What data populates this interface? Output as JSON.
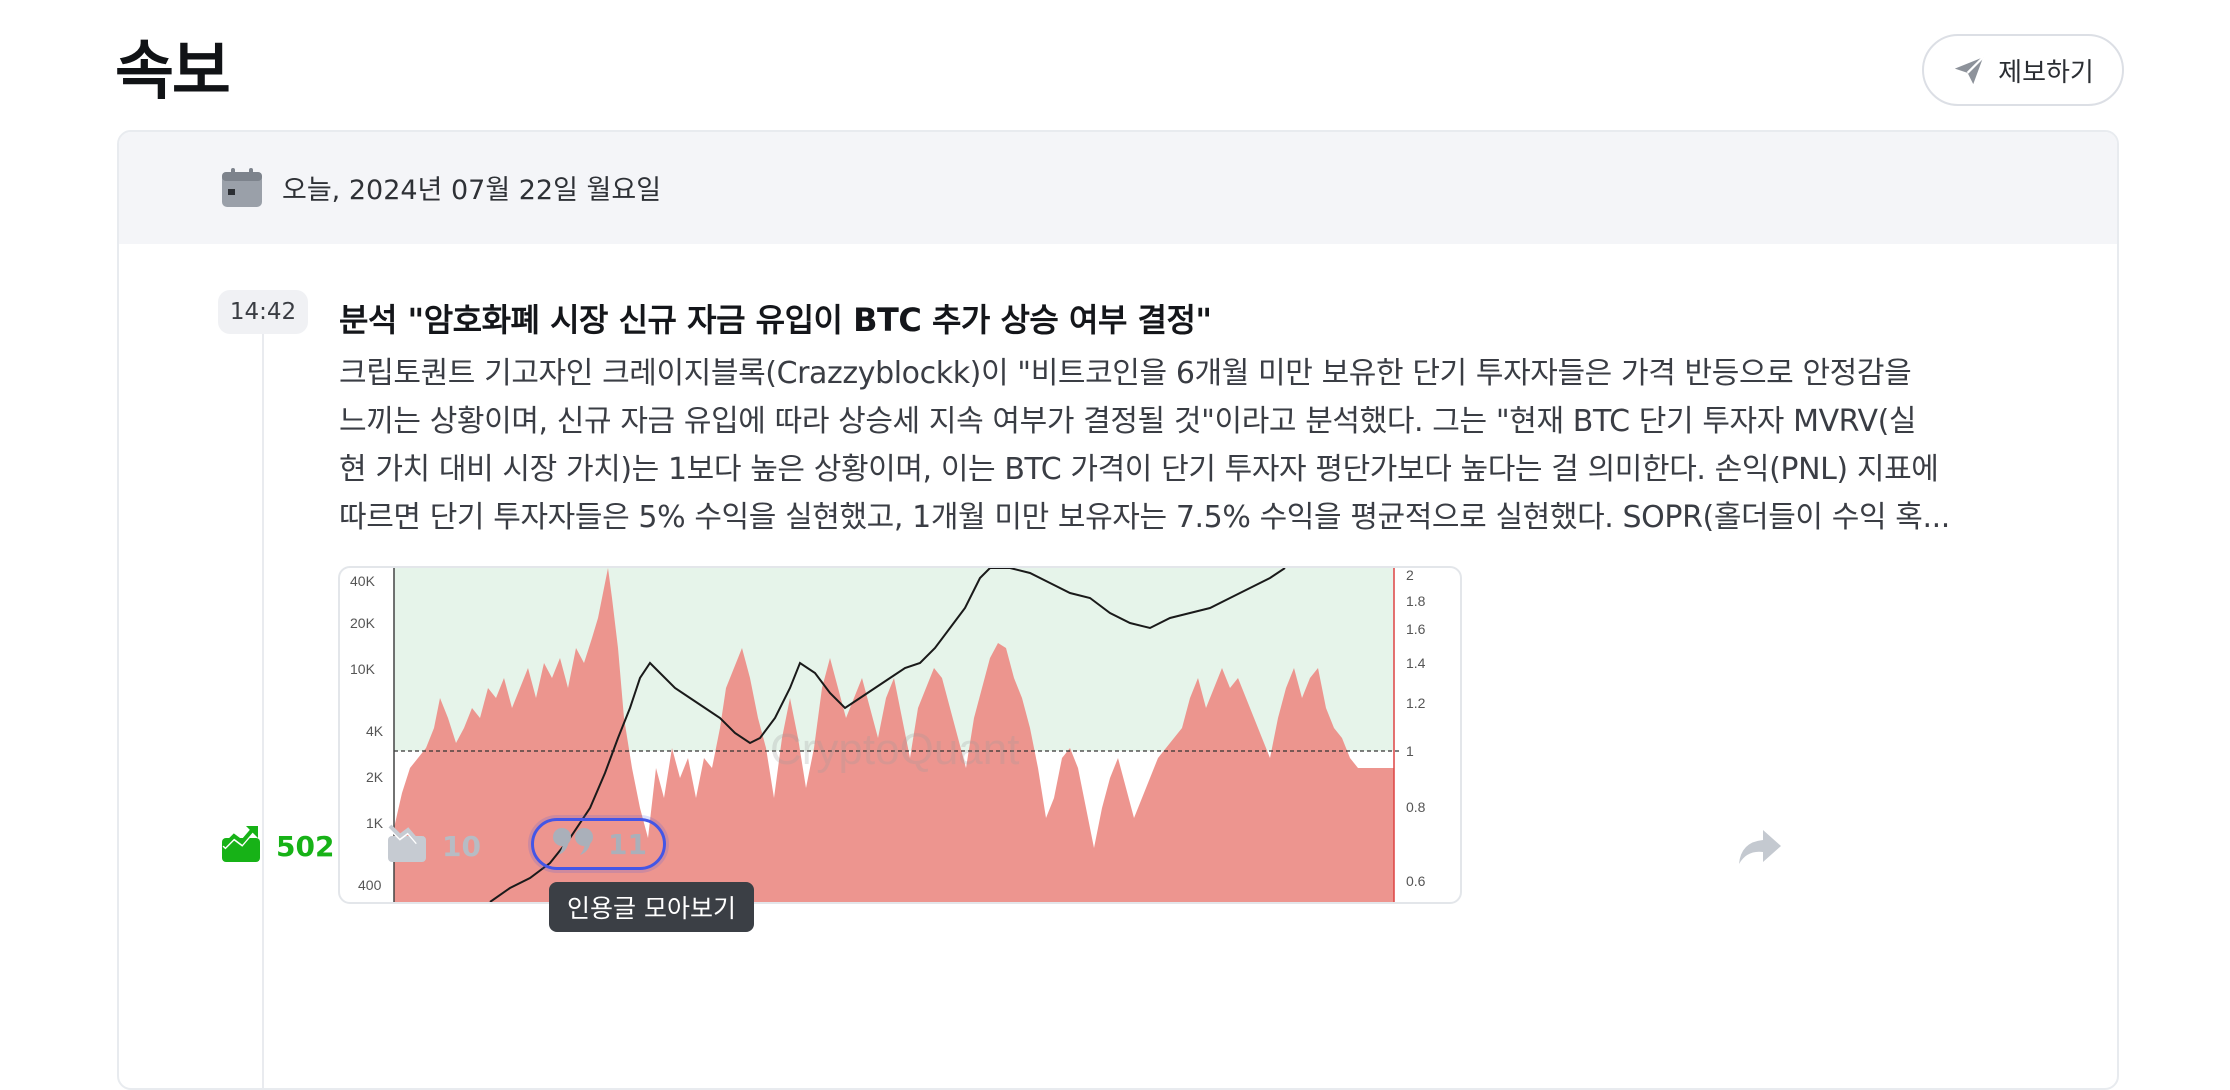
{
  "page": {
    "title": "속보"
  },
  "report_button": {
    "label": "제보하기"
  },
  "date_bar": {
    "text": "오늘, 2024년 07월 22일 월요일"
  },
  "news": {
    "time": "14:42",
    "title": "분석 \"암호화폐 시장 신규 자금 유입이 BTC 추가 상승 여부 결정\"",
    "body_lines": [
      "크립토퀀트 기고자인 크레이지블록(Crazzyblockk)이 \"비트코인을 6개월 미만 보유한 단기 투자자들은 가격 반등으로 안정감을",
      "느끼는 상황이며, 신규 자금 유입에 따라 상승세 지속 여부가 결정될 것\"이라고 분석했다. 그는 \"현재 BTC 단기 투자자 MVRV(실",
      "현 가치 대비 시장 가치)는 1보다 높은 상황이며, 이는 BTC 가격이 단기 투자자 평단가보다 높다는 걸 의미한다. 손익(PNL) 지표에",
      "따르면 단기 투자자들은 5% 수익을 실현했고, 1개월 미만 보유자는 7.5% 수익을 평균적으로 실현했다. SOPR(홀더들이 수익 혹..."
    ]
  },
  "chart_image": {
    "left_axis_ticks": [
      "40K",
      "20K",
      "10K",
      "4K",
      "2K",
      "1K",
      "400"
    ],
    "right_axis_ticks": [
      "2",
      "1.8",
      "1.6",
      "1.4",
      "1.2",
      "1",
      "0.8",
      "0.6"
    ],
    "watermark": "CryptoQuant",
    "colors": {
      "above": "#e6f4ea",
      "below": "#ec8f89",
      "line": "#1a1a1a"
    }
  },
  "actions": {
    "bullish_count": "502",
    "bearish_count": "10",
    "quote_count": "11",
    "quote_tooltip": "인용글 모아보기"
  },
  "colors": {
    "bullish": "#17b217",
    "muted": "#b7bcc4",
    "focus_ring": "#4456e6"
  }
}
